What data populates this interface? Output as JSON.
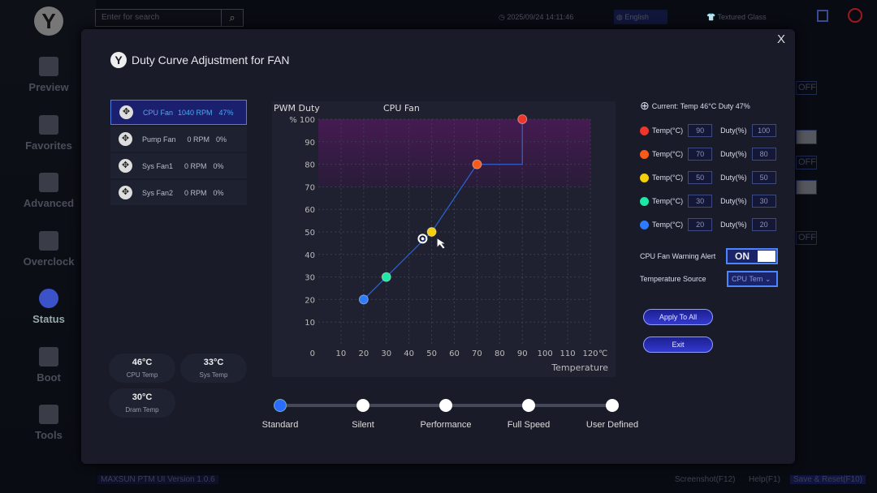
{
  "sidebar": {
    "logo": "Y",
    "items": [
      {
        "label": "Preview"
      },
      {
        "label": "Favorites"
      },
      {
        "label": "Advanced"
      },
      {
        "label": "Overclock"
      },
      {
        "label": "Status",
        "active": true
      },
      {
        "label": "Boot"
      },
      {
        "label": "Tools"
      }
    ]
  },
  "topbar": {
    "search_placeholder": "Enter for search",
    "datetime": "2025/09/24 14:11:46",
    "language": "English",
    "theme": "Textured Glass"
  },
  "background": {
    "controls": [
      "OFF",
      "OFF",
      "OFF"
    ]
  },
  "modal": {
    "title": "Duty Curve Adjustment for FAN",
    "close": "X",
    "fans": [
      {
        "name": "CPU Fan",
        "rpm": "1040 RPM",
        "duty": "47%",
        "selected": true
      },
      {
        "name": "Pump Fan",
        "rpm": "0 RPM",
        "duty": "0%"
      },
      {
        "name": "Sys Fan1",
        "rpm": "0 RPM",
        "duty": "0%"
      },
      {
        "name": "Sys Fan2",
        "rpm": "0 RPM",
        "duty": "0%"
      }
    ],
    "temps": [
      {
        "value": "46°C",
        "label": "CPU Temp"
      },
      {
        "value": "33°C",
        "label": "Sys Temp"
      },
      {
        "value": "30°C",
        "label": "Dram Temp"
      }
    ],
    "current": "Current: Temp 46°C  Duty 47%",
    "temp_label": "Temp(°C)",
    "duty_label": "Duty(%)",
    "points": [
      {
        "temp": "90",
        "duty": "100",
        "color": "#f0352a"
      },
      {
        "temp": "70",
        "duty": "80",
        "color": "#f85a1a"
      },
      {
        "temp": "50",
        "duty": "50",
        "color": "#f5d00a"
      },
      {
        "temp": "30",
        "duty": "30",
        "color": "#1de8a6"
      },
      {
        "temp": "20",
        "duty": "20",
        "color": "#2d7bff"
      }
    ],
    "warning_label": "CPU Fan Warning Alert",
    "warning_value": "ON",
    "source_label": "Temperature Source",
    "source_value": "CPU Tem",
    "apply": "Apply To All",
    "exit": "Exit",
    "profiles": [
      {
        "label": "Standard",
        "active": true
      },
      {
        "label": "Silent"
      },
      {
        "label": "Performance"
      },
      {
        "label": "Full Speed"
      },
      {
        "label": "User Defined"
      }
    ]
  },
  "chart_data": {
    "type": "line",
    "title": "CPU Fan",
    "ylabel": "PWM Duty",
    "yunit": "%",
    "xlabel": "Temperature",
    "xunit": "℃",
    "xlim": [
      0,
      120
    ],
    "ylim": [
      0,
      100
    ],
    "xticks": [
      "0",
      "10",
      "20",
      "30",
      "40",
      "50",
      "60",
      "70",
      "80",
      "90",
      "100",
      "110",
      "120"
    ],
    "yticks": [
      "10",
      "20",
      "30",
      "40",
      "50",
      "60",
      "70",
      "80",
      "90",
      "100"
    ],
    "grid": true,
    "series": [
      {
        "x": [
          20,
          30,
          50,
          70,
          90,
          90
        ],
        "y": [
          20,
          30,
          50,
          80,
          80,
          100
        ]
      }
    ],
    "control_points": [
      {
        "x": 20,
        "y": 20
      },
      {
        "x": 30,
        "y": 30
      },
      {
        "x": 50,
        "y": 50
      },
      {
        "x": 70,
        "y": 80
      },
      {
        "x": 90,
        "y": 100
      }
    ],
    "current_point": {
      "x": 46,
      "y": 47
    },
    "shaded_band": [
      70,
      100
    ]
  },
  "footer": {
    "version": "MAXSUN PTM UI Version 1.0.6",
    "screenshot": "Screenshot(F12)",
    "help": "Help(F1)",
    "save": "Save & Reset(F10)"
  }
}
